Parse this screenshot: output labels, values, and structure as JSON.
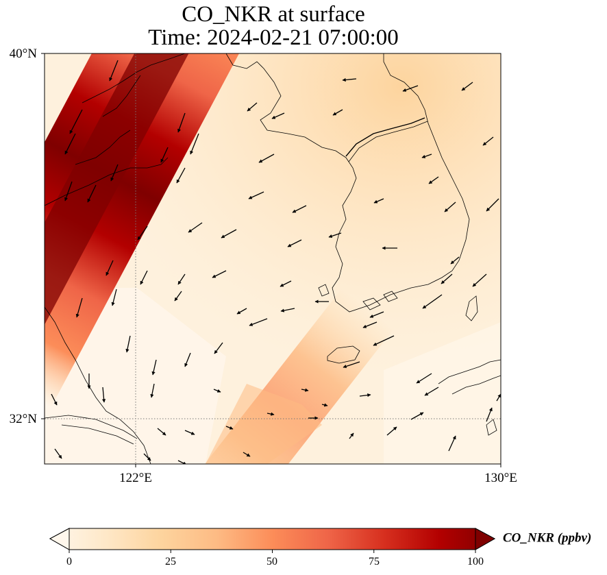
{
  "title": {
    "line1": "CO_NKR at surface",
    "line2": "Time: 2024-02-21 07:00:00"
  },
  "map": {
    "variable": "CO_NKR",
    "level": "surface",
    "lat_ticks": [
      {
        "label": "40°N",
        "value": 40
      },
      {
        "label": "32°N",
        "value": 32
      }
    ],
    "lon_ticks": [
      {
        "label": "122°E",
        "value": 122
      },
      {
        "label": "130°E",
        "value": 130
      }
    ],
    "extent": {
      "lon_min": 120,
      "lon_max": 130,
      "lat_min": 31,
      "lat_max": 40
    },
    "gridlines": {
      "style": "dotted",
      "color": "#777777"
    }
  },
  "colorbar": {
    "label": "CO_NKR (ppbv)",
    "ticks": [
      "0",
      "25",
      "50",
      "75",
      "100"
    ],
    "tick_values": [
      0,
      25,
      50,
      75,
      100
    ],
    "range": [
      0,
      100
    ],
    "extend": "both",
    "colormap": "OrRd",
    "colors": [
      "#fff7ec",
      "#fee8c8",
      "#fdd49e",
      "#fdbb84",
      "#fc8d59",
      "#ef6548",
      "#d7301f",
      "#b30000",
      "#7f0000"
    ]
  },
  "chart_data": {
    "type": "heatmap",
    "title": "CO_NKR at surface Time: 2024-02-21 07:00:00",
    "xlabel": "",
    "ylabel": "",
    "xlim": [
      120,
      130
    ],
    "ylim": [
      31,
      40
    ],
    "xticks": [
      122,
      130
    ],
    "yticks": [
      32,
      40
    ],
    "legend": "colorbar-bottom",
    "features": {
      "high_plume": {
        "description": "diagonal band SW-NE over eastern China coast",
        "value_range": [
          75,
          100
        ]
      },
      "moderate_tongue": {
        "description": "tongue from south-centre toward east",
        "value_range": [
          40,
          55
        ]
      },
      "background": {
        "value_range": [
          5,
          25
        ]
      }
    },
    "wind_vectors": {
      "predominant_direction": "southwestward",
      "style": "black arrows"
    }
  }
}
